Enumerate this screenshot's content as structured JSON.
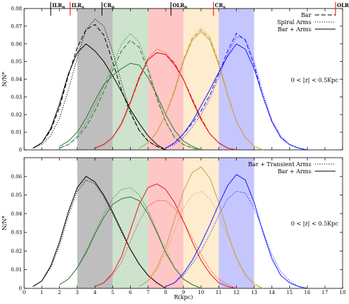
{
  "chart_data": {
    "type": "line",
    "xlabel": "R(kpc)",
    "x_ticks": [
      "0",
      "1",
      "2",
      "3",
      "4",
      "5",
      "6",
      "7",
      "8",
      "9",
      "10",
      "11",
      "12",
      "13",
      "14",
      "15",
      "16",
      "17",
      "18"
    ],
    "xlim": [
      0,
      18
    ],
    "grid": false,
    "panels": [
      {
        "id": "top",
        "ylabel": "N/N*",
        "ylim": [
          0,
          0.08
        ],
        "y_ticks": [
          "0",
          "0.01",
          "0.02",
          "0.03",
          "0.04",
          "0.05",
          "0.06",
          "0.07",
          "0.08"
        ],
        "annotation": "0 < |z| < 0.5Kpc",
        "legend": {
          "placement": "top-right",
          "entries": [
            {
              "label": "Bar",
              "style": "dashed"
            },
            {
              "label": "Spiral Arms",
              "style": "dotted"
            },
            {
              "label": "Bar + Arms",
              "style": "solid"
            }
          ]
        },
        "resonance_markers": [
          {
            "label": "ILR_B",
            "main": "ILR",
            "sub": "B",
            "x": 1.5,
            "color": "#000000"
          },
          {
            "label": "ILR_S",
            "main": "ILR",
            "sub": "S",
            "x": 2.6,
            "color": "#ff0000"
          },
          {
            "label": "CR_B",
            "main": "CR",
            "sub": "B",
            "x": 4.4,
            "color": "#000000"
          },
          {
            "label": "OLR_B",
            "main": "OLR",
            "sub": "B",
            "x": 8.3,
            "color": "#000000"
          },
          {
            "label": "CR_S",
            "main": "CR",
            "sub": "S",
            "x": 10.7,
            "color": "#ff0000"
          },
          {
            "label": "OLR_S",
            "main": "OLR",
            "sub": "S",
            "x": 17.6,
            "color": "#ff0000"
          }
        ]
      },
      {
        "id": "bottom",
        "ylabel": "N/N*",
        "ylim": [
          0,
          0.07
        ],
        "y_ticks": [
          "0",
          "0.01",
          "0.02",
          "0.03",
          "0.04",
          "0.05",
          "0.06"
        ],
        "annotation": "0 < |z| < 0.5Kpc",
        "legend": {
          "placement": "top-right",
          "entries": [
            {
              "label": "Bar + Transient Arms",
              "style": "dotted"
            },
            {
              "label": "Bar + Arms",
              "style": "solid"
            }
          ]
        }
      }
    ],
    "bands": [
      {
        "x0": 3,
        "x1": 5,
        "color": "#a8a8a8"
      },
      {
        "x0": 5,
        "x1": 7,
        "color": "#bcd9bc"
      },
      {
        "x0": 7,
        "x1": 9,
        "color": "#ffb3b3"
      },
      {
        "x0": 9,
        "x1": 11,
        "color": "#fde5bf"
      },
      {
        "x0": 11,
        "x1": 13,
        "color": "#b3b3ff"
      }
    ],
    "groups": [
      {
        "color": "#000000",
        "center": 3.7,
        "sigma": 1.0
      },
      {
        "color": "#2a7a2a",
        "center": 6.0,
        "sigma": 1.35
      },
      {
        "color": "#e81818",
        "center": 7.9,
        "sigma": 1.15
      },
      {
        "color": "#c8a040",
        "center": 9.9,
        "sigma": 1.0
      },
      {
        "color": "#1a1aff",
        "center": 12.0,
        "sigma": 1.1
      }
    ],
    "top_series": [
      {
        "group": 0,
        "style": "dashed",
        "x": [
          0.5,
          1,
          1.5,
          2,
          2.5,
          3,
          3.5,
          4,
          4.5,
          5,
          5.5,
          6,
          6.5,
          7,
          7.5,
          8
        ],
        "y": [
          0.001,
          0.004,
          0.011,
          0.024,
          0.042,
          0.058,
          0.068,
          0.071,
          0.065,
          0.05,
          0.034,
          0.021,
          0.011,
          0.005,
          0.002,
          0
        ]
      },
      {
        "group": 0,
        "style": "dotted",
        "x": [
          0.5,
          1,
          1.5,
          2,
          2.5,
          3,
          3.5,
          4,
          4.5,
          5,
          5.5,
          6,
          6.5,
          7,
          7.5,
          8
        ],
        "y": [
          0.001,
          0.003,
          0.008,
          0.018,
          0.034,
          0.052,
          0.068,
          0.074,
          0.07,
          0.056,
          0.038,
          0.022,
          0.011,
          0.005,
          0.002,
          0
        ]
      },
      {
        "group": 0,
        "style": "solid",
        "x": [
          0.5,
          1,
          1.5,
          2,
          2.5,
          3,
          3.5,
          4,
          4.5,
          5,
          5.5,
          6,
          6.5,
          7,
          7.5,
          8
        ],
        "y": [
          0.001,
          0.004,
          0.012,
          0.026,
          0.043,
          0.055,
          0.06,
          0.056,
          0.05,
          0.042,
          0.033,
          0.023,
          0.015,
          0.008,
          0.003,
          0
        ]
      },
      {
        "group": 1,
        "style": "dashed",
        "x": [
          2,
          2.5,
          3,
          3.5,
          4,
          4.5,
          5,
          5.5,
          6,
          6.5,
          7,
          7.5,
          8,
          8.5,
          9,
          9.5,
          10
        ],
        "y": [
          0.001,
          0.003,
          0.007,
          0.013,
          0.022,
          0.033,
          0.045,
          0.056,
          0.062,
          0.058,
          0.045,
          0.029,
          0.016,
          0.007,
          0.003,
          0.001,
          0
        ]
      },
      {
        "group": 1,
        "style": "dotted",
        "x": [
          2,
          2.5,
          3,
          3.5,
          4,
          4.5,
          5,
          5.5,
          6,
          6.5,
          7,
          7.5,
          8,
          8.5,
          9,
          9.5,
          10
        ],
        "y": [
          0.001,
          0.003,
          0.008,
          0.015,
          0.025,
          0.036,
          0.048,
          0.06,
          0.066,
          0.061,
          0.047,
          0.03,
          0.016,
          0.007,
          0.003,
          0.001,
          0
        ]
      },
      {
        "group": 1,
        "style": "solid",
        "x": [
          2,
          2.5,
          3,
          3.5,
          4,
          4.5,
          5,
          5.5,
          6,
          6.5,
          7,
          7.5,
          8,
          8.5,
          9,
          9.5,
          10
        ],
        "y": [
          0.002,
          0.005,
          0.01,
          0.018,
          0.028,
          0.037,
          0.042,
          0.046,
          0.049,
          0.048,
          0.041,
          0.031,
          0.02,
          0.011,
          0.005,
          0.002,
          0
        ]
      },
      {
        "group": 2,
        "style": "dashed",
        "x": [
          4,
          4.5,
          5,
          5.5,
          6,
          6.5,
          7,
          7.5,
          8,
          8.5,
          9,
          9.5,
          10,
          10.5,
          11,
          11.5,
          12
        ],
        "y": [
          0.001,
          0.003,
          0.007,
          0.015,
          0.027,
          0.04,
          0.051,
          0.055,
          0.054,
          0.049,
          0.04,
          0.029,
          0.018,
          0.009,
          0.004,
          0.001,
          0
        ]
      },
      {
        "group": 2,
        "style": "dotted",
        "x": [
          4,
          4.5,
          5,
          5.5,
          6,
          6.5,
          7,
          7.5,
          8,
          8.5,
          9,
          9.5,
          10,
          10.5,
          11,
          11.5,
          12
        ],
        "y": [
          0.001,
          0.003,
          0.007,
          0.014,
          0.026,
          0.04,
          0.052,
          0.057,
          0.055,
          0.049,
          0.04,
          0.029,
          0.018,
          0.009,
          0.004,
          0.001,
          0
        ]
      },
      {
        "group": 2,
        "style": "solid",
        "x": [
          4,
          4.5,
          5,
          5.5,
          6,
          6.5,
          7,
          7.5,
          8,
          8.5,
          9,
          9.5,
          10,
          10.5,
          11,
          11.5,
          12
        ],
        "y": [
          0.001,
          0.003,
          0.007,
          0.015,
          0.027,
          0.041,
          0.051,
          0.055,
          0.054,
          0.048,
          0.04,
          0.028,
          0.017,
          0.009,
          0.004,
          0.001,
          0
        ]
      },
      {
        "group": 3,
        "style": "dashed",
        "x": [
          6.5,
          7,
          7.5,
          8,
          8.5,
          9,
          9.5,
          10,
          10.5,
          11,
          11.5,
          12,
          12.5,
          13,
          13.5
        ],
        "y": [
          0.001,
          0.004,
          0.01,
          0.02,
          0.034,
          0.051,
          0.063,
          0.068,
          0.063,
          0.049,
          0.031,
          0.016,
          0.007,
          0.002,
          0
        ]
      },
      {
        "group": 3,
        "style": "dotted",
        "x": [
          6.5,
          7,
          7.5,
          8,
          8.5,
          9,
          9.5,
          10,
          10.5,
          11,
          11.5,
          12,
          12.5,
          13,
          13.5
        ],
        "y": [
          0.001,
          0.004,
          0.01,
          0.02,
          0.034,
          0.05,
          0.064,
          0.069,
          0.064,
          0.05,
          0.032,
          0.016,
          0.007,
          0.002,
          0
        ]
      },
      {
        "group": 3,
        "style": "solid",
        "x": [
          6.5,
          7,
          7.5,
          8,
          8.5,
          9,
          9.5,
          10,
          10.5,
          11,
          11.5,
          12,
          12.5,
          13,
          13.5
        ],
        "y": [
          0.001,
          0.004,
          0.01,
          0.02,
          0.033,
          0.05,
          0.062,
          0.067,
          0.062,
          0.048,
          0.031,
          0.016,
          0.007,
          0.002,
          0
        ]
      },
      {
        "group": 4,
        "style": "dashed",
        "x": [
          8,
          8.5,
          9,
          9.5,
          10,
          10.5,
          11,
          11.5,
          12,
          12.5,
          13,
          13.5,
          14,
          14.5,
          15,
          15.5,
          16
        ],
        "y": [
          0.001,
          0.004,
          0.009,
          0.015,
          0.022,
          0.031,
          0.043,
          0.056,
          0.066,
          0.062,
          0.048,
          0.03,
          0.016,
          0.007,
          0.003,
          0.001,
          0
        ]
      },
      {
        "group": 4,
        "style": "dotted",
        "x": [
          8,
          8.5,
          9,
          9.5,
          10,
          10.5,
          11,
          11.5,
          12,
          12.5,
          13,
          13.5,
          14,
          14.5,
          15,
          15.5,
          16
        ],
        "y": [
          0.001,
          0.003,
          0.007,
          0.013,
          0.02,
          0.029,
          0.041,
          0.054,
          0.064,
          0.063,
          0.05,
          0.032,
          0.017,
          0.008,
          0.003,
          0.001,
          0
        ]
      },
      {
        "group": 4,
        "style": "solid",
        "x": [
          8,
          8.5,
          9,
          9.5,
          10,
          10.5,
          11,
          11.5,
          12,
          12.5,
          13,
          13.5,
          14,
          14.5,
          15,
          15.5,
          16
        ],
        "y": [
          0.001,
          0.004,
          0.009,
          0.016,
          0.025,
          0.034,
          0.044,
          0.053,
          0.06,
          0.057,
          0.046,
          0.03,
          0.016,
          0.007,
          0.003,
          0.001,
          0
        ]
      }
    ],
    "bottom_series": [
      {
        "group": 0,
        "style": "dotted",
        "x": [
          0.5,
          1,
          1.5,
          2,
          2.5,
          3,
          3.5,
          4,
          4.5,
          5,
          5.5,
          6,
          6.5,
          7,
          7.5,
          8
        ],
        "y": [
          0.001,
          0.004,
          0.011,
          0.023,
          0.039,
          0.052,
          0.058,
          0.056,
          0.049,
          0.04,
          0.03,
          0.021,
          0.013,
          0.007,
          0.003,
          0
        ]
      },
      {
        "group": 0,
        "style": "solid",
        "x": [
          0.5,
          1,
          1.5,
          2,
          2.5,
          3,
          3.5,
          4,
          4.5,
          5,
          5.5,
          6,
          6.5,
          7,
          7.5,
          8
        ],
        "y": [
          0.001,
          0.004,
          0.012,
          0.025,
          0.041,
          0.054,
          0.06,
          0.057,
          0.05,
          0.041,
          0.031,
          0.021,
          0.013,
          0.007,
          0.003,
          0
        ]
      },
      {
        "group": 1,
        "style": "dotted",
        "x": [
          2,
          2.5,
          3,
          3.5,
          4,
          4.5,
          5,
          5.5,
          6,
          6.5,
          7,
          7.5,
          8,
          8.5,
          9,
          9.5,
          10
        ],
        "y": [
          0.002,
          0.005,
          0.011,
          0.02,
          0.03,
          0.04,
          0.048,
          0.053,
          0.054,
          0.05,
          0.042,
          0.031,
          0.02,
          0.011,
          0.005,
          0.002,
          0
        ]
      },
      {
        "group": 1,
        "style": "solid",
        "x": [
          2,
          2.5,
          3,
          3.5,
          4,
          4.5,
          5,
          5.5,
          6,
          6.5,
          7,
          7.5,
          8,
          8.5,
          9,
          9.5,
          10
        ],
        "y": [
          0.002,
          0.005,
          0.011,
          0.019,
          0.029,
          0.038,
          0.045,
          0.048,
          0.049,
          0.047,
          0.04,
          0.03,
          0.019,
          0.011,
          0.005,
          0.002,
          0
        ]
      },
      {
        "group": 2,
        "style": "dotted",
        "x": [
          4,
          4.5,
          5,
          5.5,
          6,
          6.5,
          7,
          7.5,
          8,
          8.5,
          9,
          9.5,
          10,
          10.5,
          11,
          11.5,
          12
        ],
        "y": [
          0.001,
          0.003,
          0.007,
          0.014,
          0.025,
          0.036,
          0.044,
          0.047,
          0.047,
          0.043,
          0.036,
          0.027,
          0.018,
          0.01,
          0.005,
          0.002,
          0
        ]
      },
      {
        "group": 2,
        "style": "solid",
        "x": [
          4,
          4.5,
          5,
          5.5,
          6,
          6.5,
          7,
          7.5,
          8,
          8.5,
          9,
          9.5,
          10,
          10.5,
          11,
          11.5,
          12
        ],
        "y": [
          0.001,
          0.003,
          0.008,
          0.017,
          0.031,
          0.045,
          0.054,
          0.056,
          0.053,
          0.046,
          0.036,
          0.025,
          0.015,
          0.008,
          0.003,
          0.001,
          0
        ]
      },
      {
        "group": 3,
        "style": "dotted",
        "x": [
          6.5,
          7,
          7.5,
          8,
          8.5,
          9,
          9.5,
          10,
          10.5,
          11,
          11.5,
          12,
          12.5,
          13,
          13.5
        ],
        "y": [
          0.001,
          0.004,
          0.01,
          0.019,
          0.031,
          0.043,
          0.05,
          0.052,
          0.048,
          0.039,
          0.028,
          0.017,
          0.008,
          0.003,
          0
        ]
      },
      {
        "group": 3,
        "style": "solid",
        "x": [
          6.5,
          7,
          7.5,
          8,
          8.5,
          9,
          9.5,
          10,
          10.5,
          11,
          11.5,
          12,
          12.5,
          13,
          13.5
        ],
        "y": [
          0.001,
          0.004,
          0.011,
          0.022,
          0.037,
          0.052,
          0.062,
          0.065,
          0.059,
          0.046,
          0.03,
          0.016,
          0.007,
          0.002,
          0
        ]
      },
      {
        "group": 4,
        "style": "dotted",
        "x": [
          8,
          8.5,
          9,
          9.5,
          10,
          10.5,
          11,
          11.5,
          12,
          12.5,
          13,
          13.5,
          14,
          14.5,
          15,
          15.5,
          16
        ],
        "y": [
          0.001,
          0.003,
          0.007,
          0.013,
          0.02,
          0.029,
          0.039,
          0.048,
          0.052,
          0.051,
          0.043,
          0.031,
          0.018,
          0.009,
          0.004,
          0.001,
          0
        ]
      },
      {
        "group": 4,
        "style": "solid",
        "x": [
          8,
          8.5,
          9,
          9.5,
          10,
          10.5,
          11,
          11.5,
          12,
          12.5,
          13,
          13.5,
          14,
          14.5,
          15,
          15.5,
          16
        ],
        "y": [
          0.001,
          0.003,
          0.008,
          0.015,
          0.024,
          0.034,
          0.045,
          0.055,
          0.061,
          0.058,
          0.046,
          0.03,
          0.016,
          0.007,
          0.003,
          0.001,
          0
        ]
      }
    ]
  }
}
